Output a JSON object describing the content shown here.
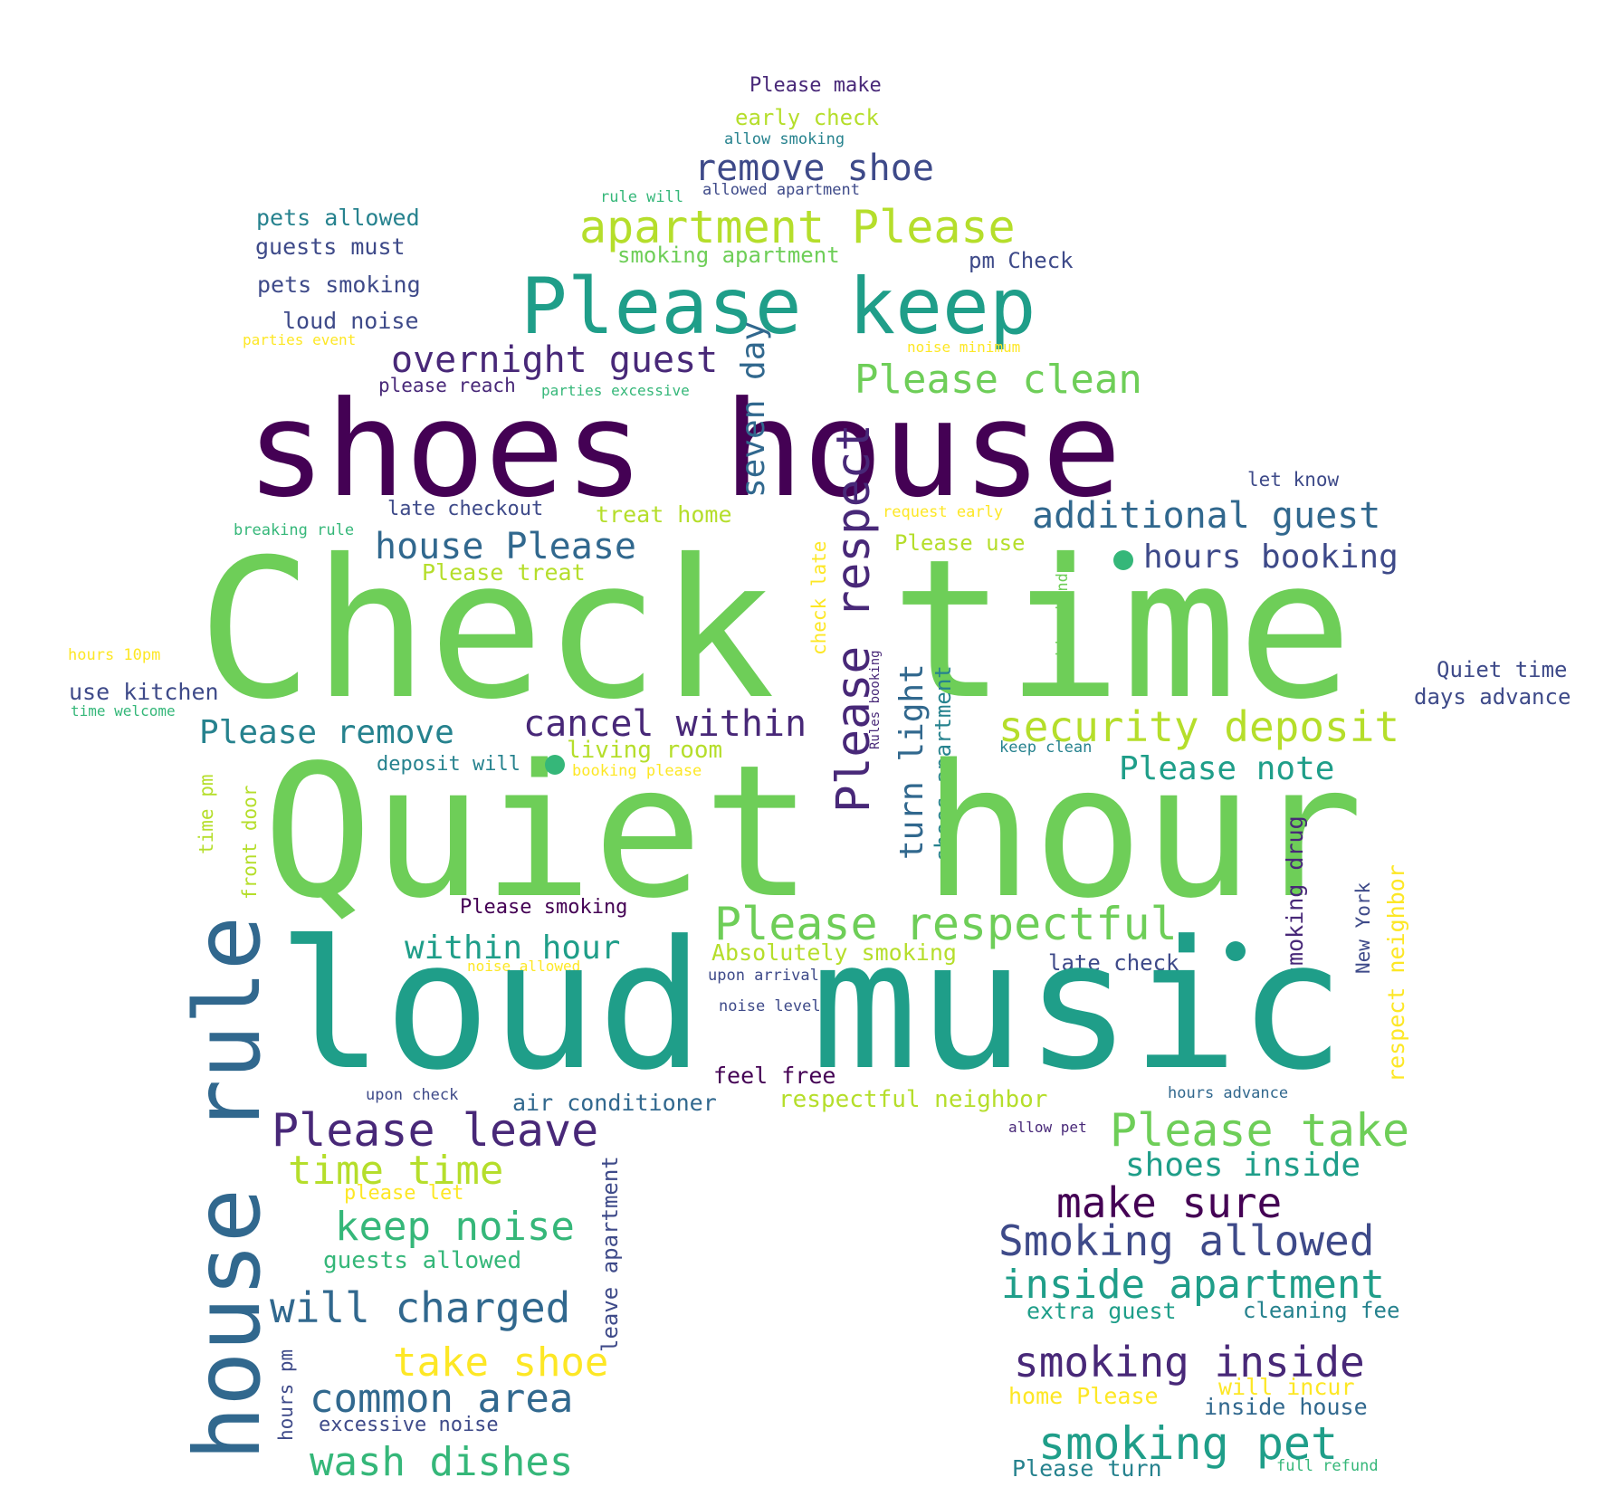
{
  "palette": {
    "dark_purple": "#440154",
    "indigo": "#482878",
    "slate": "#3e4a89",
    "blue": "#31688e",
    "teal": "#26828e",
    "sea": "#1f9e89",
    "green": "#35b779",
    "lime": "#6ece58",
    "yellow_green": "#b5de2b",
    "yellow": "#fde725"
  },
  "words": [
    {
      "text": "Please make",
      "color": "#482878"
    },
    {
      "text": "early check",
      "color": "#b5de2b"
    },
    {
      "text": "allow smoking",
      "color": "#26828e"
    },
    {
      "text": "remove shoe",
      "color": "#3e4a89"
    },
    {
      "text": "rule will",
      "color": "#35b779"
    },
    {
      "text": "allowed apartment",
      "color": "#3e4a89"
    },
    {
      "text": "pets allowed",
      "color": "#26828e"
    },
    {
      "text": "apartment Please",
      "color": "#b5de2b"
    },
    {
      "text": "guests must",
      "color": "#3e4a89"
    },
    {
      "text": "smoking apartment",
      "color": "#6ece58"
    },
    {
      "text": "pm Check",
      "color": "#3e4a89"
    },
    {
      "text": "Please keep",
      "color": "#1f9e89"
    },
    {
      "text": "pets smoking",
      "color": "#3e4a89"
    },
    {
      "text": "loud noise",
      "color": "#3e4a89"
    },
    {
      "text": "parties event",
      "color": "#fde725"
    },
    {
      "text": "noise minimum",
      "color": "#fde725"
    },
    {
      "text": "overnight guest",
      "color": "#482878"
    },
    {
      "text": "Please clean",
      "color": "#6ece58"
    },
    {
      "text": "please reach",
      "color": "#482878"
    },
    {
      "text": "parties excessive",
      "color": "#35b779"
    },
    {
      "text": "shoes house",
      "color": "#440154"
    },
    {
      "text": "let know",
      "color": "#3e4a89"
    },
    {
      "text": "late checkout",
      "color": "#3e4a89"
    },
    {
      "text": "treat home",
      "color": "#b5de2b"
    },
    {
      "text": "request early",
      "color": "#fde725"
    },
    {
      "text": "additional guest",
      "color": "#31688e"
    },
    {
      "text": "breaking rule",
      "color": "#35b779"
    },
    {
      "text": "house Please",
      "color": "#31688e"
    },
    {
      "text": "Please use",
      "color": "#b5de2b"
    },
    {
      "text": "hours booking",
      "color": "#3e4a89"
    },
    {
      "text": "Please treat",
      "color": "#b5de2b"
    },
    {
      "text": "seven day",
      "color": "#31688e"
    },
    {
      "text": "Please respect",
      "color": "#482878"
    },
    {
      "text": "check late",
      "color": "#fde725"
    },
    {
      "text": "smoking kind",
      "color": "#6ece58"
    },
    {
      "text": "Check time",
      "color": "#6ece58"
    },
    {
      "text": "hours 10pm",
      "color": "#fde725"
    },
    {
      "text": "Quiet time",
      "color": "#3e4a89"
    },
    {
      "text": "use kitchen",
      "color": "#3e4a89"
    },
    {
      "text": "days advance",
      "color": "#3e4a89"
    },
    {
      "text": "time welcome",
      "color": "#35b779"
    },
    {
      "text": "Rules booking",
      "color": "#482878"
    },
    {
      "text": "turn light",
      "color": "#31688e"
    },
    {
      "text": "shoes apartment",
      "color": "#26828e"
    },
    {
      "text": "cancel within",
      "color": "#482878"
    },
    {
      "text": "security deposit",
      "color": "#b5de2b"
    },
    {
      "text": "Please remove",
      "color": "#26828e"
    },
    {
      "text": "living room",
      "color": "#b5de2b"
    },
    {
      "text": "keep clean",
      "color": "#26828e"
    },
    {
      "text": "deposit will",
      "color": "#26828e"
    },
    {
      "text": "booking please",
      "color": "#fde725"
    },
    {
      "text": "Please note",
      "color": "#1f9e89"
    },
    {
      "text": "Quiet hour",
      "color": "#6ece58"
    },
    {
      "text": "time pm",
      "color": "#b5de2b"
    },
    {
      "text": "front door",
      "color": "#b5de2b"
    },
    {
      "text": "smoking drug",
      "color": "#482878"
    },
    {
      "text": "respect neighbor",
      "color": "#fde725"
    },
    {
      "text": "New York",
      "color": "#3e4a89"
    },
    {
      "text": "Please smoking",
      "color": "#440154"
    },
    {
      "text": "Please respectful",
      "color": "#6ece58"
    },
    {
      "text": "house rule",
      "color": "#31688e"
    },
    {
      "text": "within hour",
      "color": "#1f9e89"
    },
    {
      "text": "Absolutely smoking",
      "color": "#b5de2b"
    },
    {
      "text": "noise allowed",
      "color": "#fde725"
    },
    {
      "text": "upon arrival",
      "color": "#3e4a89"
    },
    {
      "text": "late check",
      "color": "#3e4a89"
    },
    {
      "text": "loud music",
      "color": "#1f9e89"
    },
    {
      "text": "noise level",
      "color": "#3e4a89"
    },
    {
      "text": "feel free",
      "color": "#440154"
    },
    {
      "text": "upon check",
      "color": "#3e4a89"
    },
    {
      "text": "air conditioner",
      "color": "#31688e"
    },
    {
      "text": "respectful neighbor",
      "color": "#b5de2b"
    },
    {
      "text": "hours advance",
      "color": "#31688e"
    },
    {
      "text": "allow pet",
      "color": "#482878"
    },
    {
      "text": "Please leave",
      "color": "#482878"
    },
    {
      "text": "Please take",
      "color": "#6ece58"
    },
    {
      "text": "time time",
      "color": "#b5de2b"
    },
    {
      "text": "shoes inside",
      "color": "#1f9e89"
    },
    {
      "text": "please let",
      "color": "#fde725"
    },
    {
      "text": "make sure",
      "color": "#440154"
    },
    {
      "text": "keep noise",
      "color": "#35b779"
    },
    {
      "text": "Smoking allowed",
      "color": "#3e4a89"
    },
    {
      "text": "guests allowed",
      "color": "#35b779"
    },
    {
      "text": "leave apartment",
      "color": "#3e4a89"
    },
    {
      "text": "inside apartment",
      "color": "#1f9e89"
    },
    {
      "text": "will charged",
      "color": "#31688e"
    },
    {
      "text": "extra guest",
      "color": "#1f9e89"
    },
    {
      "text": "cleaning fee",
      "color": "#26828e"
    },
    {
      "text": "take shoe",
      "color": "#fde725"
    },
    {
      "text": "smoking inside",
      "color": "#482878"
    },
    {
      "text": "common area",
      "color": "#31688e"
    },
    {
      "text": "hours pm",
      "color": "#3e4a89"
    },
    {
      "text": "home Please",
      "color": "#fde725"
    },
    {
      "text": "will incur",
      "color": "#fde725"
    },
    {
      "text": "inside house",
      "color": "#31688e"
    },
    {
      "text": "excessive noise",
      "color": "#3e4a89"
    },
    {
      "text": "smoking pet",
      "color": "#1f9e89"
    },
    {
      "text": "wash dishes",
      "color": "#35b779"
    },
    {
      "text": "Please turn",
      "color": "#26828e"
    },
    {
      "text": "full refund",
      "color": "#35b779"
    }
  ],
  "dots": [
    {
      "color": "#35b779"
    },
    {
      "color": "#35b779"
    },
    {
      "color": "#1f9e89"
    }
  ]
}
